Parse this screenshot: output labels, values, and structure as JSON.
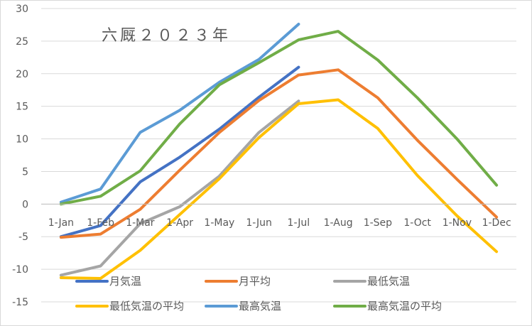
{
  "chart_data": {
    "type": "line",
    "title": "六厩２０２３年",
    "categories": [
      "1-Jan",
      "1-Feb",
      "1-Mar",
      "1-Apr",
      "1-May",
      "1-Jun",
      "1-Jul",
      "1-Aug",
      "1-Sep",
      "1-Oct",
      "1-Nov",
      "1-Dec"
    ],
    "ylim": [
      -15,
      30
    ],
    "yticks": [
      -15,
      -10,
      -5,
      0,
      5,
      10,
      15,
      20,
      25,
      30
    ],
    "grid": true,
    "legend_position": "bottom",
    "series": [
      {
        "name": "月気温",
        "color": "#4472c4",
        "values": [
          -5.0,
          -3.3,
          3.4,
          7.2,
          11.5,
          16.4,
          21.0,
          null,
          null,
          null,
          null,
          null
        ]
      },
      {
        "name": "月平均",
        "color": "#ed7d31",
        "values": [
          -5.1,
          -4.6,
          -0.8,
          5.2,
          11.0,
          15.9,
          19.8,
          20.6,
          16.3,
          9.8,
          3.8,
          -2.0
        ]
      },
      {
        "name": "最低気温",
        "color": "#a5a5a5",
        "values": [
          -10.9,
          -9.5,
          -3.0,
          -0.4,
          4.3,
          11.0,
          15.8,
          null,
          null,
          null,
          null,
          null
        ]
      },
      {
        "name": "最低気温の平均",
        "color": "#ffc000",
        "values": [
          -11.3,
          -11.4,
          -7.1,
          -1.6,
          3.9,
          10.2,
          15.4,
          16.0,
          11.6,
          4.4,
          -1.8,
          -7.3
        ]
      },
      {
        "name": "最高気温",
        "color": "#5b9bd5",
        "values": [
          0.3,
          2.3,
          11.0,
          14.4,
          18.7,
          22.2,
          27.6,
          null,
          null,
          null,
          null,
          null
        ]
      },
      {
        "name": "最高気温の平均",
        "color": "#70ad47",
        "values": [
          0.0,
          1.2,
          5.1,
          12.3,
          18.3,
          21.7,
          25.2,
          26.5,
          22.1,
          16.3,
          10.0,
          2.9
        ]
      }
    ]
  }
}
